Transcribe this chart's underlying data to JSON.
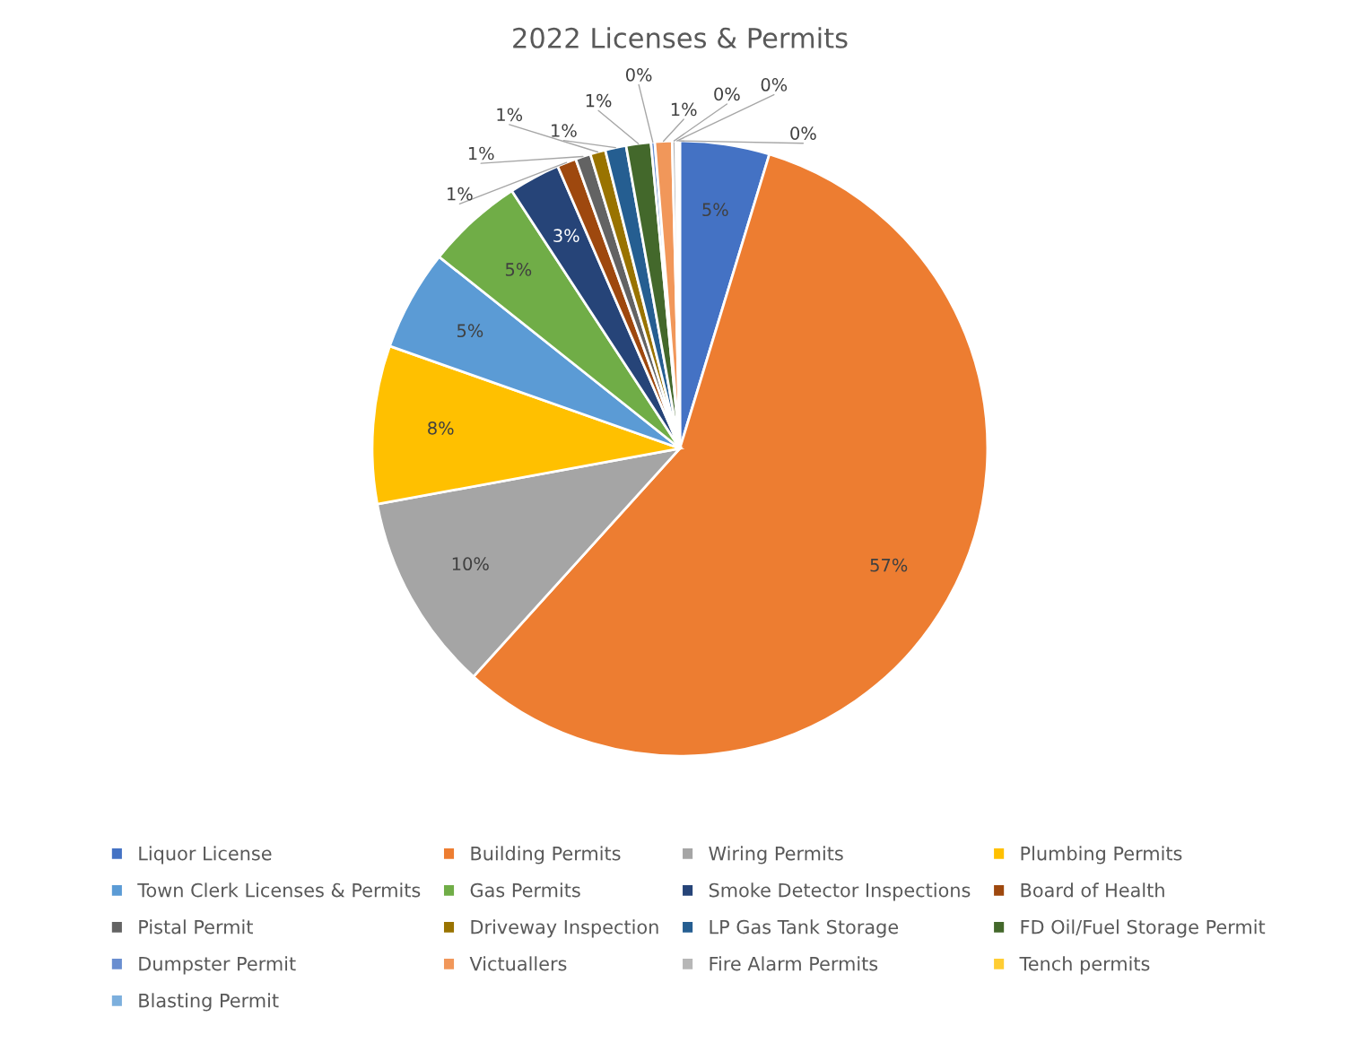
{
  "chart_data": {
    "type": "pie",
    "title": "2022 Licenses & Permits",
    "categories": [
      "Liquor License",
      "Building Permits",
      "Wiring Permits",
      "Plumbing Permits",
      "Town Clerk Licenses & Permits",
      "Gas Permits",
      "Smoke Detector Inspections",
      "Board of Health",
      "Pistal Permit",
      "Driveway Inspection",
      "LP Gas Tank Storage",
      "FD Oil/Fuel Storage Permit",
      "Dumpster Permit",
      "Victuallers",
      "Fire Alarm Permits",
      "Tench permits",
      "Blasting Permit"
    ],
    "values": [
      4.7,
      57.0,
      10.4,
      8.3,
      5.3,
      5.1,
      2.7,
      1.0,
      0.8,
      0.8,
      1.1,
      1.3,
      0.2,
      0.9,
      0.2,
      0.1,
      0.1
    ],
    "value_labels": [
      "5%",
      "57%",
      "10%",
      "8%",
      "5%",
      "5%",
      "3%",
      "1%",
      "1%",
      "1%",
      "1%",
      "1%",
      "0%",
      "1%",
      "0%",
      "0%",
      "0%"
    ],
    "colors": [
      "#4472c4",
      "#ed7d31",
      "#a5a5a5",
      "#ffc000",
      "#5b9bd5",
      "#70ad47",
      "#264478",
      "#9e480e",
      "#636363",
      "#997300",
      "#255e91",
      "#43682b",
      "#698ed0",
      "#f1975a",
      "#b7b7b7",
      "#ffcd33",
      "#7cafdd"
    ],
    "legend": "bottom"
  }
}
